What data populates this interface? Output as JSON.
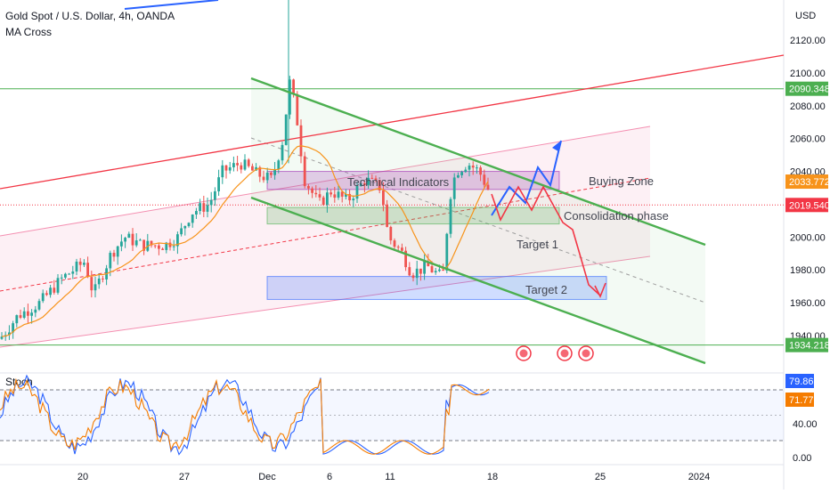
{
  "header": {
    "title": "Gold Spot / U.S. Dollar, 4h, OANDA",
    "indicator": "MA Cross"
  },
  "colors": {
    "up": "#26a69a",
    "down": "#ef5350",
    "ma": "#f7931a",
    "stoch_k": "#2962ff",
    "stoch_d": "#f57c00",
    "red_line": "#f23645",
    "green_line": "#4caf50",
    "forecast_blue": "#2962ff",
    "forecast_red": "#f23645"
  },
  "chart_data": [
    {
      "type": "candlestick",
      "currency": "USD",
      "y_ticks": [
        1940.0,
        1960.0,
        1980.0,
        2000.0,
        2020.0,
        2040.0,
        2060.0,
        2080.0,
        2100.0,
        2120.0
      ],
      "x_ticks": [
        "20",
        "27",
        "Dec",
        "6",
        "11",
        "18",
        "25",
        "2024"
      ],
      "ylim": [
        1928,
        2135
      ],
      "grid": false,
      "price_markers": [
        {
          "label": "2090.348",
          "value": 2090.348,
          "color": "#4caf50"
        },
        {
          "label": "2033.772",
          "value": 2033.772,
          "color": "#f7931a"
        },
        {
          "label": "2019.540",
          "value": 2019.54,
          "color": "#f23645"
        },
        {
          "label": "1934.218",
          "value": 1934.218,
          "color": "#4caf50"
        }
      ],
      "horizontal_levels": [
        2090.348,
        1934.218
      ],
      "zones": [
        {
          "label": "Buying Zone",
          "low": 2029,
          "high": 2040,
          "color": "#9c27b0"
        },
        {
          "label": "Consolidation phase",
          "low": 2008,
          "high": 2018,
          "color": "#4caf50"
        },
        {
          "label": "Target 2",
          "low": 1962,
          "high": 1976,
          "color": "#2962ff"
        }
      ],
      "annotations": [
        "Technical Indicators",
        "Target 1"
      ],
      "events": 3
    },
    {
      "type": "line",
      "indicator": "Stoch",
      "ylim": [
        0,
        100
      ],
      "y_ticks": [
        "0.00",
        "40.00"
      ],
      "levels": [
        80,
        20
      ],
      "series": [
        {
          "name": "",
          "last": "79.86",
          "color": "#2962ff"
        },
        {
          "name": "",
          "last": "71.77",
          "color": "#f57c00"
        }
      ]
    }
  ]
}
